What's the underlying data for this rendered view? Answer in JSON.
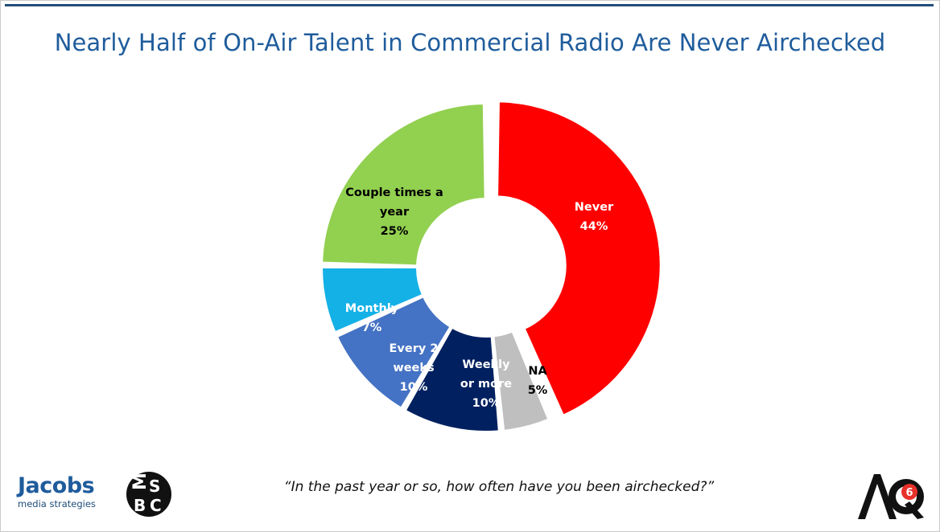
{
  "title": "Nearly Half of On-Air Talent in Commercial Radio Are Never Airchecked",
  "question": "“In the past year or so, how often have you been airchecked?”",
  "logos": {
    "jacobs_word": "Jacobs",
    "jacobs_sub": "media strategies",
    "msbc_text": "MSBC",
    "aq_text": "AQ",
    "aq_number": "6"
  },
  "colors": {
    "title": "#1f5c9c",
    "never": "#ff0000",
    "couple_times": "#92d050",
    "monthly": "#14b1e7",
    "every_2_weeks": "#4472c4",
    "weekly": "#002060",
    "na": "#bfbfbf"
  },
  "chart_data": {
    "type": "pie",
    "donut": true,
    "title": "Nearly Half of On-Air Talent in Commercial Radio Are Never Airchecked",
    "slices": [
      {
        "label": "Never",
        "value": 44,
        "pct": "44%",
        "color": "#ff0000",
        "text_color": "#ffffff",
        "exploded": true
      },
      {
        "label": "NA",
        "value": 5,
        "pct": "5%",
        "color": "#bfbfbf",
        "text_color": "#000000",
        "exploded": false
      },
      {
        "label": "Weekly or more",
        "value": 10,
        "pct": "10%",
        "color": "#002060",
        "text_color": "#ffffff",
        "exploded": false
      },
      {
        "label": "Every 2 weeks",
        "value": 10,
        "pct": "10%",
        "color": "#4472c4",
        "text_color": "#ffffff",
        "exploded": false
      },
      {
        "label": "Monthly",
        "value": 7,
        "pct": "7%",
        "color": "#14b1e7",
        "text_color": "#ffffff",
        "exploded": false
      },
      {
        "label": "Couple times a year",
        "value": 25,
        "pct": "25%",
        "color": "#92d050",
        "text_color": "#000000",
        "exploded": false
      }
    ]
  }
}
